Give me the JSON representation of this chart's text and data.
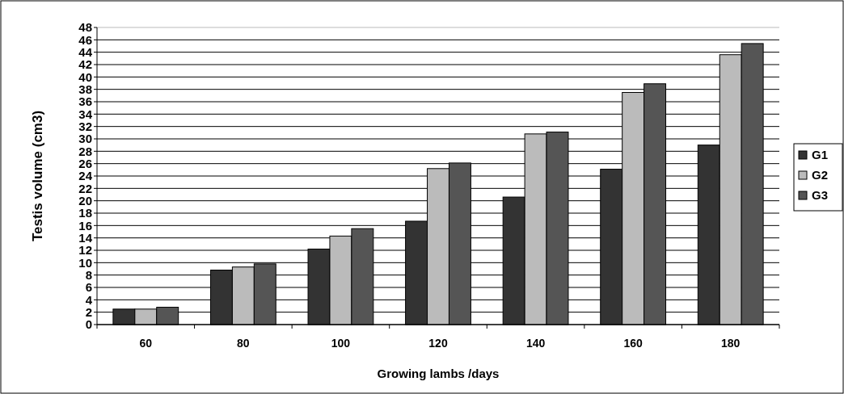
{
  "chart_data": {
    "type": "bar",
    "xlabel": "Growing lambs /days",
    "ylabel": "Testis volume (cm3)",
    "categories": [
      "60",
      "80",
      "100",
      "120",
      "140",
      "160",
      "180"
    ],
    "series": [
      {
        "name": "G1",
        "color": "#333333",
        "values": [
          2.5,
          8.8,
          12.2,
          16.7,
          20.6,
          25.1,
          29.0
        ]
      },
      {
        "name": "G2",
        "color": "#bbbbbb",
        "values": [
          2.5,
          9.3,
          14.3,
          25.2,
          30.8,
          37.5,
          43.6
        ]
      },
      {
        "name": "G3",
        "color": "#555555",
        "values": [
          2.8,
          9.8,
          15.5,
          26.1,
          31.1,
          38.9,
          45.4
        ]
      }
    ],
    "ylim": [
      0,
      48
    ],
    "yticks": [
      0,
      2,
      4,
      6,
      8,
      10,
      12,
      14,
      16,
      18,
      20,
      22,
      24,
      26,
      28,
      30,
      32,
      34,
      36,
      38,
      40,
      42,
      44,
      46,
      48
    ],
    "grid": "y",
    "legend": "right"
  }
}
